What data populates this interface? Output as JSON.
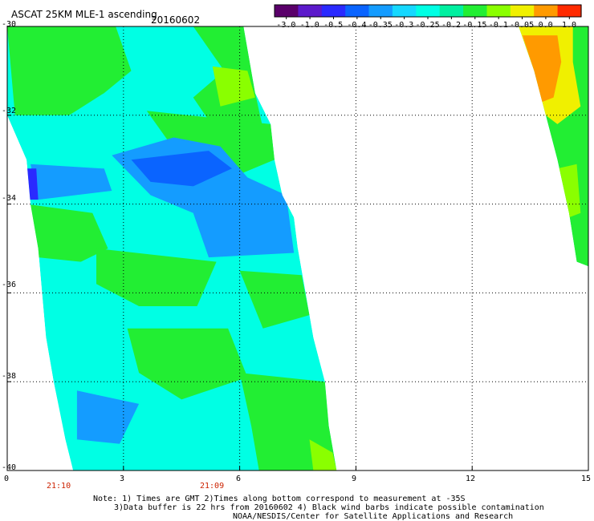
{
  "title": "ASCAT 25KM MLE-1 ascending",
  "date": "20160602",
  "colorbar": {
    "ticks": [
      "-3.0",
      "-1.0",
      "-0.5",
      "-0.4",
      "-0.35",
      "-0.3",
      "-0.25",
      "-0.2",
      "-0.15",
      "-0.1",
      "-0.05",
      "0.0",
      "1.0"
    ],
    "colors": [
      "#5a006a",
      "#5c1acb",
      "#2a2aff",
      "#0a64ff",
      "#149cff",
      "#16d8ff",
      "#00ffe4",
      "#00f0a0",
      "#22ee33",
      "#8aff00",
      "#f0f000",
      "#ff9a00",
      "#ff2a00"
    ]
  },
  "y_axis": {
    "ticks": [
      "-30",
      "-32",
      "-34",
      "-36",
      "-38",
      "-40"
    ]
  },
  "x_axis": {
    "ticks": [
      "0",
      "3",
      "6",
      "9",
      "12",
      "15"
    ]
  },
  "pass_times": [
    "21:10",
    "21:09"
  ],
  "notes": {
    "line1": "Note: 1) Times are GMT 2)Times along bottom correspond to measurement at -35S",
    "line2": "3)Data buffer is 22 hrs from 20160602 4) Black wind barbs indicate possible contamination",
    "line3": "NOAA/NESDIS/Center for Satellite Applications and Research"
  },
  "swaths": [
    {
      "name": "main-swath",
      "polygon_lonlat": [
        [
          0,
          -30
        ],
        [
          6.1,
          -30
        ],
        [
          6.4,
          -31.5
        ],
        [
          6.8,
          -32.2
        ],
        [
          6.9,
          -33
        ],
        [
          7.1,
          -33.8
        ],
        [
          7.4,
          -34.3
        ],
        [
          7.5,
          -35
        ],
        [
          7.7,
          -36
        ],
        [
          7.9,
          -37
        ],
        [
          8.2,
          -38
        ],
        [
          8.3,
          -39
        ],
        [
          8.5,
          -40
        ],
        [
          1.7,
          -40
        ],
        [
          1.5,
          -39.3
        ],
        [
          1.2,
          -38
        ],
        [
          1.0,
          -37
        ],
        [
          0.9,
          -36
        ],
        [
          0.8,
          -35
        ],
        [
          0.6,
          -34
        ],
        [
          0.5,
          -33
        ],
        [
          0,
          -32
        ],
        [
          0,
          -30
        ]
      ],
      "color_regions": [
        {
          "value": "-0.25",
          "polygon": [
            [
              0,
              -30
            ],
            [
              6.1,
              -30
            ],
            [
              6.3,
              -31.5
            ],
            [
              6.9,
              -33
            ],
            [
              6.5,
              -34
            ],
            [
              5.5,
              -35
            ],
            [
              7.5,
              -35
            ],
            [
              7.9,
              -37
            ],
            [
              8.5,
              -40
            ],
            [
              1.7,
              -40
            ],
            [
              1.2,
              -38
            ],
            [
              0.8,
              -35
            ],
            [
              0.5,
              -33
            ],
            [
              0,
              -32
            ]
          ]
        },
        {
          "value": "-0.15",
          "polygon": [
            [
              0,
              -30
            ],
            [
              2.8,
              -30
            ],
            [
              3.2,
              -31
            ],
            [
              2.5,
              -31.5
            ],
            [
              1.6,
              -32
            ],
            [
              0.2,
              -32
            ]
          ]
        },
        {
          "value": "-0.15",
          "polygon": [
            [
              4.8,
              -30
            ],
            [
              6.1,
              -30
            ],
            [
              6.4,
              -31.5
            ],
            [
              6.6,
              -32.3
            ],
            [
              5.5,
              -32.5
            ],
            [
              4.8,
              -31.6
            ],
            [
              5.6,
              -31
            ]
          ]
        },
        {
          "value": "-0.15",
          "polygon": [
            [
              3.6,
              -31.9
            ],
            [
              6.8,
              -32.2
            ],
            [
              6.9,
              -33
            ],
            [
              5.8,
              -33.4
            ],
            [
              4.5,
              -33
            ]
          ]
        },
        {
          "value": "-0.15",
          "polygon": [
            [
              0.5,
              -34
            ],
            [
              2.2,
              -34.2
            ],
            [
              2.6,
              -35
            ],
            [
              1.9,
              -35.3
            ],
            [
              0.8,
              -35.2
            ]
          ]
        },
        {
          "value": "-0.15",
          "polygon": [
            [
              2.3,
              -35
            ],
            [
              5.4,
              -35.3
            ],
            [
              4.9,
              -36.3
            ],
            [
              3.4,
              -36.3
            ],
            [
              2.3,
              -35.8
            ]
          ]
        },
        {
          "value": "-0.15",
          "polygon": [
            [
              6.0,
              -35.5
            ],
            [
              7.6,
              -35.6
            ],
            [
              7.8,
              -36.5
            ],
            [
              6.6,
              -36.8
            ]
          ]
        },
        {
          "value": "-0.15",
          "polygon": [
            [
              3.1,
              -36.8
            ],
            [
              5.7,
              -36.8
            ],
            [
              6.2,
              -37.9
            ],
            [
              4.5,
              -38.4
            ],
            [
              3.4,
              -37.8
            ]
          ]
        },
        {
          "value": "-0.15",
          "polygon": [
            [
              6.0,
              -37.8
            ],
            [
              8.2,
              -38
            ],
            [
              8.5,
              -40
            ],
            [
              6.5,
              -40
            ],
            [
              6.3,
              -39
            ]
          ]
        },
        {
          "value": "-0.1",
          "polygon": [
            [
              7.8,
              -39.3
            ],
            [
              8.4,
              -39.6
            ],
            [
              8.5,
              -40
            ],
            [
              7.9,
              -40
            ]
          ]
        },
        {
          "value": "-0.1",
          "polygon": [
            [
              5.3,
              -30.9
            ],
            [
              6.2,
              -31
            ],
            [
              6.4,
              -31.6
            ],
            [
              5.5,
              -31.8
            ]
          ]
        },
        {
          "value": "-0.35",
          "polygon": [
            [
              0.6,
              -33.1
            ],
            [
              2.5,
              -33.2
            ],
            [
              2.7,
              -33.7
            ],
            [
              0.8,
              -33.9
            ]
          ]
        },
        {
          "value": "-0.35",
          "polygon": [
            [
              2.7,
              -32.9
            ],
            [
              3.7,
              -33.8
            ],
            [
              4.8,
              -34.2
            ],
            [
              5.2,
              -35.2
            ],
            [
              7.4,
              -35.1
            ],
            [
              7.2,
              -33.8
            ],
            [
              6.2,
              -33.4
            ],
            [
              5.5,
              -32.7
            ],
            [
              4.3,
              -32.5
            ]
          ]
        },
        {
          "value": "-0.35",
          "polygon": [
            [
              1.8,
              -38.2
            ],
            [
              3.4,
              -38.5
            ],
            [
              2.9,
              -39.4
            ],
            [
              1.8,
              -39.3
            ]
          ]
        },
        {
          "value": "-0.4",
          "polygon": [
            [
              3.2,
              -33.0
            ],
            [
              5.2,
              -32.8
            ],
            [
              5.8,
              -33.2
            ],
            [
              4.8,
              -33.6
            ],
            [
              3.7,
              -33.5
            ]
          ]
        },
        {
          "value": "-0.5",
          "polygon": [
            [
              0.5,
              -33.2
            ],
            [
              0.75,
              -33.2
            ],
            [
              0.8,
              -33.9
            ],
            [
              0.55,
              -33.9
            ]
          ]
        }
      ]
    },
    {
      "name": "east-swath",
      "polygon_lonlat": [
        [
          13.2,
          -30
        ],
        [
          15,
          -30
        ],
        [
          15,
          -35.4
        ],
        [
          14.7,
          -35.3
        ],
        [
          14.5,
          -34.2
        ],
        [
          14.2,
          -33
        ],
        [
          13.9,
          -32
        ],
        [
          13.6,
          -31
        ],
        [
          13.2,
          -30
        ]
      ],
      "color_regions": [
        {
          "value": "-0.15",
          "polygon": [
            [
              13.2,
              -30
            ],
            [
              15,
              -30
            ],
            [
              15,
              -35.4
            ],
            [
              14.7,
              -35.3
            ],
            [
              14.5,
              -34.2
            ],
            [
              14.2,
              -33
            ],
            [
              13.9,
              -32
            ],
            [
              13.6,
              -31
            ]
          ]
        },
        {
          "value": "-0.05",
          "polygon": [
            [
              13.2,
              -30
            ],
            [
              14.6,
              -30
            ],
            [
              14.6,
              -30.8
            ],
            [
              14.8,
              -31.8
            ],
            [
              14.2,
              -32.2
            ],
            [
              13.9,
              -32
            ],
            [
              13.6,
              -31
            ]
          ]
        },
        {
          "value": "0.0",
          "polygon": [
            [
              13.3,
              -30.2
            ],
            [
              14.2,
              -30.2
            ],
            [
              14.3,
              -30.8
            ],
            [
              14.1,
              -31.6
            ],
            [
              13.8,
              -31.7
            ],
            [
              13.6,
              -31
            ]
          ]
        },
        {
          "value": "-0.1",
          "polygon": [
            [
              14.2,
              -33.2
            ],
            [
              14.7,
              -33.1
            ],
            [
              14.8,
              -34.2
            ],
            [
              14.5,
              -34.3
            ]
          ]
        }
      ]
    }
  ]
}
